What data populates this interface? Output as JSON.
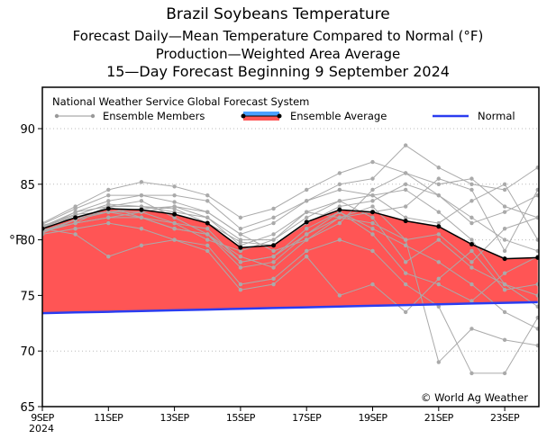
{
  "chart_data": {
    "type": "line",
    "title": "Brazil Soybeans Temperature",
    "subtitles": [
      "Forecast Daily—Mean Temperature Compared to Normal (°F)",
      "Production—Weighted Area Average",
      "15—Day Forecast Beginning 9 September 2024"
    ],
    "ylabel": "°F",
    "ylim": [
      65,
      93
    ],
    "yticks": [
      65,
      70,
      75,
      80,
      85,
      90
    ],
    "xticks": [
      "9SEP",
      "11SEP",
      "13SEP",
      "15SEP",
      "17SEP",
      "19SEP",
      "21SEP",
      "23SEP"
    ],
    "xtick_year": "2024",
    "x_days": [
      9,
      10,
      11,
      12,
      13,
      14,
      15,
      16,
      17,
      18,
      19,
      20,
      21,
      22,
      23,
      24
    ],
    "legend_source": "National Weather Service Global Forecast System",
    "legend": [
      "Ensemble Members",
      "Ensemble Average",
      "Normal"
    ],
    "copyright": "© World Ag Weather",
    "colors": {
      "members": "#aaaaaa",
      "average": "#000000",
      "fill": "#ff5555",
      "normal": "#2a3cf0"
    },
    "ensemble_average": [
      81.0,
      82.0,
      82.8,
      82.7,
      82.3,
      81.5,
      79.3,
      79.5,
      81.6,
      82.7,
      82.5,
      81.7,
      81.2,
      79.6,
      78.3,
      78.4
    ],
    "normal": [
      73.4,
      73.47,
      73.53,
      73.6,
      73.67,
      73.73,
      73.8,
      73.87,
      73.93,
      74.0,
      74.07,
      74.13,
      74.2,
      74.27,
      74.33,
      74.4
    ],
    "ensemble_members": [
      [
        81.2,
        82.5,
        83.5,
        84.0,
        83.4,
        82.5,
        80.5,
        81.5,
        83.5,
        85.0,
        85.5,
        88.5,
        86.5,
        85.0,
        84.5,
        86.5
      ],
      [
        80.8,
        81.5,
        82.0,
        82.0,
        81.0,
        80.5,
        78.0,
        78.5,
        80.5,
        82.0,
        83.0,
        80.0,
        69.0,
        72.0,
        71.0,
        70.5
      ],
      [
        81.5,
        83.0,
        84.5,
        85.2,
        84.8,
        84.0,
        82.0,
        82.8,
        84.5,
        86.0,
        87.0,
        86.0,
        84.0,
        82.0,
        80.0,
        79.0
      ],
      [
        80.5,
        81.0,
        81.5,
        81.0,
        80.0,
        79.5,
        76.0,
        76.5,
        79.0,
        80.0,
        79.0,
        76.0,
        74.0,
        68.0,
        68.0,
        73.0
      ],
      [
        81.0,
        82.5,
        83.0,
        83.0,
        82.5,
        82.0,
        80.0,
        80.0,
        82.0,
        83.5,
        84.0,
        84.5,
        82.5,
        80.0,
        76.0,
        75.0
      ],
      [
        81.3,
        82.0,
        82.5,
        82.5,
        83.0,
        82.0,
        79.5,
        80.5,
        82.5,
        82.0,
        81.5,
        80.0,
        80.5,
        78.0,
        81.0,
        82.0
      ],
      [
        80.7,
        81.5,
        83.0,
        83.5,
        82.0,
        80.5,
        78.5,
        77.5,
        80.0,
        82.0,
        82.5,
        83.0,
        85.5,
        84.5,
        79.0,
        84.5
      ],
      [
        81.0,
        80.5,
        78.5,
        79.5,
        80.0,
        79.0,
        75.5,
        76.0,
        78.5,
        75.0,
        76.0,
        73.5,
        76.5,
        79.0,
        75.5,
        76.0
      ],
      [
        81.4,
        82.8,
        84.0,
        84.0,
        84.0,
        83.5,
        81.0,
        82.0,
        83.5,
        84.5,
        84.0,
        82.0,
        81.5,
        83.5,
        85.0,
        80.0
      ],
      [
        80.6,
        81.8,
        82.5,
        82.0,
        81.5,
        81.0,
        78.0,
        78.5,
        81.0,
        82.5,
        81.0,
        79.5,
        78.0,
        76.0,
        73.5,
        72.0
      ],
      [
        81.1,
        82.2,
        83.2,
        83.0,
        82.8,
        81.5,
        79.8,
        79.5,
        81.5,
        83.0,
        83.5,
        85.0,
        84.0,
        81.5,
        82.5,
        84.0
      ],
      [
        80.9,
        81.5,
        82.0,
        82.5,
        81.5,
        80.0,
        79.0,
        80.0,
        82.5,
        83.5,
        82.0,
        78.0,
        80.0,
        77.5,
        76.0,
        74.0
      ],
      [
        81.2,
        82.3,
        82.5,
        82.8,
        83.0,
        82.5,
        80.5,
        79.0,
        80.0,
        81.5,
        84.5,
        86.0,
        85.0,
        85.5,
        83.0,
        82.0
      ],
      [
        80.8,
        81.8,
        83.0,
        82.0,
        81.0,
        80.5,
        77.5,
        78.0,
        80.5,
        82.5,
        80.5,
        77.0,
        76.0,
        74.5,
        77.0,
        78.5
      ]
    ]
  }
}
